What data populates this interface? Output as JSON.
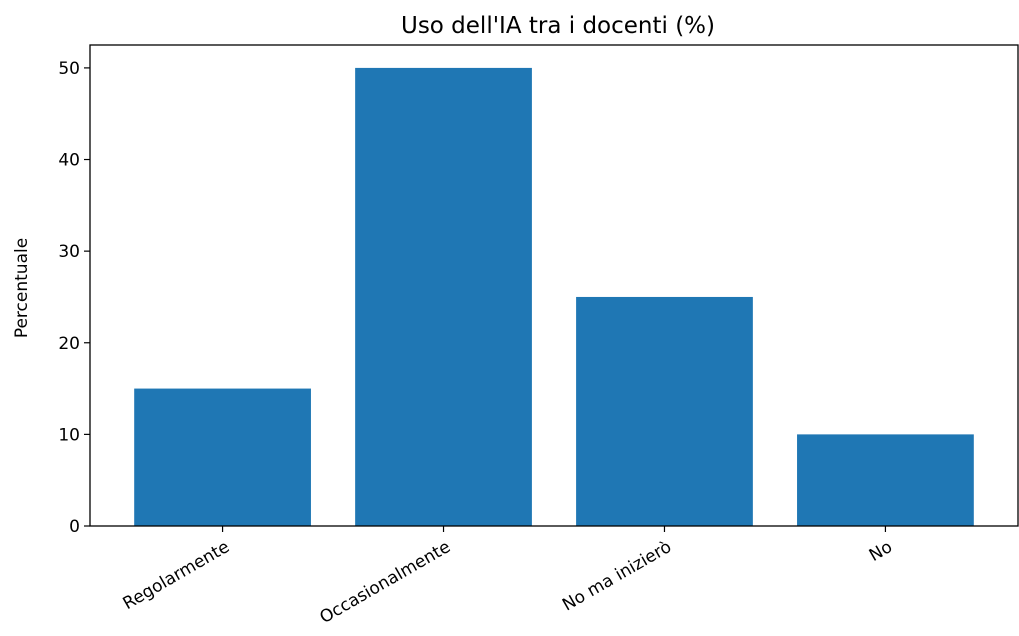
{
  "chart_data": {
    "type": "bar",
    "title": "Uso dell'IA tra i docenti (%)",
    "xlabel": "",
    "ylabel": "Percentuale",
    "categories": [
      "Regolarmente",
      "Occasionalmente",
      "No ma inizierò",
      "No"
    ],
    "values": [
      15,
      50,
      25,
      10
    ],
    "ylim": [
      0,
      52.5
    ],
    "yticks": [
      0,
      10,
      20,
      30,
      40,
      50
    ],
    "bar_color": "#1f77b4",
    "grid": false,
    "legend": "none"
  }
}
